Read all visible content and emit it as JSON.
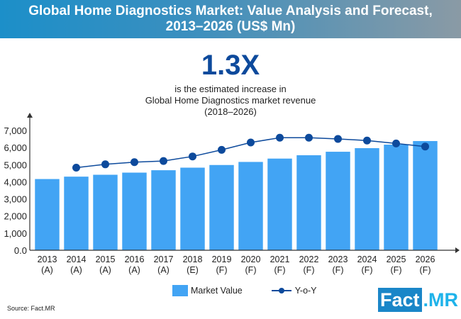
{
  "header": {
    "title_line1": "Global Home Diagnostics Market:  Value Analysis and Forecast,",
    "title_line2": "2013–2026 (US$ Mn)"
  },
  "highlight": {
    "value": "1.3X",
    "line1": "is the estimated increase in",
    "line2": "Global Home Diagnostics market revenue",
    "line3": "(2018–2026)"
  },
  "chart_data": {
    "type": "bar",
    "categories": [
      "2013",
      "2014",
      "2015",
      "2016",
      "2017",
      "2018",
      "2019",
      "2020",
      "2021",
      "2022",
      "2023",
      "2024",
      "2025",
      "2026"
    ],
    "category_sublabels": [
      "(A)",
      "(A)",
      "(A)",
      "(A)",
      "(A)",
      "(E)",
      "(F)",
      "(F)",
      "(F)",
      "(F)",
      "(F)",
      "(F)",
      "(F)",
      "(F)"
    ],
    "ylim": [
      0,
      7000
    ],
    "yticks": [
      "0.0",
      "1,000",
      "2,000",
      "3,000",
      "4,000",
      "5,000",
      "6,000",
      "7,000"
    ],
    "series": [
      {
        "name": "Market Value",
        "type": "bar",
        "color": "#42a4f4",
        "values": [
          4160,
          4300,
          4410,
          4535,
          4675,
          4825,
          4980,
          5160,
          5355,
          5550,
          5755,
          5965,
          6170,
          6380
        ]
      },
      {
        "name": "Y-o-Y",
        "type": "line",
        "color": "#0d4a9c",
        "values": [
          null,
          4825,
          5020,
          5145,
          5215,
          5480,
          5865,
          6295,
          6575,
          6575,
          6505,
          6410,
          6240,
          6060
        ]
      }
    ],
    "legend": "bottom",
    "grid": false
  },
  "legend": {
    "bar": "Market Value",
    "line": "Y-o-Y"
  },
  "footer": {
    "source": "Source: Fact.MR",
    "logo_a": "Fact",
    ".logo_b": ".MR",
    "logo_b": ".MR"
  }
}
